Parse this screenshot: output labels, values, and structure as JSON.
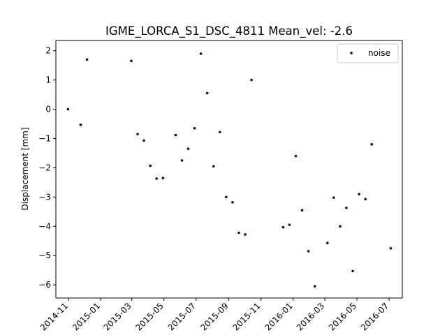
{
  "chart_data": {
    "type": "scatter",
    "title": "IGME_LORCA_S1_DSC_4811    Mean_vel: -2.6",
    "xlabel": "",
    "ylabel": "Displacement [mm]",
    "xlim": [
      "2014-10-08",
      "2016-07-26"
    ],
    "ylim": [
      -6.45,
      2.35
    ],
    "x_ticks": [
      "2014-11",
      "2015-01",
      "2015-03",
      "2015-05",
      "2015-07",
      "2015-09",
      "2015-11",
      "2016-01",
      "2016-03",
      "2016-05",
      "2016-07"
    ],
    "x_tick_dates": [
      "2014-11-01",
      "2015-01-01",
      "2015-03-01",
      "2015-05-01",
      "2015-07-01",
      "2015-09-01",
      "2015-11-01",
      "2016-01-01",
      "2016-03-01",
      "2016-05-01",
      "2016-07-01"
    ],
    "y_ticks": [
      2,
      1,
      0,
      -1,
      -2,
      -3,
      -4,
      -5,
      -6
    ],
    "y_tick_labels": [
      "2",
      "1",
      "0",
      "−1",
      "−2",
      "−3",
      "−4",
      "−5",
      "−6"
    ],
    "grid": false,
    "legend_position": "top-right",
    "marker_color": "#00007f",
    "series": [
      {
        "name": "noise",
        "points": [
          {
            "x": "2014-10-31",
            "y": 0.0
          },
          {
            "x": "2014-11-24",
            "y": -0.53
          },
          {
            "x": "2014-12-06",
            "y": 1.7
          },
          {
            "x": "2015-02-28",
            "y": 1.65
          },
          {
            "x": "2015-03-12",
            "y": -0.85
          },
          {
            "x": "2015-03-24",
            "y": -1.07
          },
          {
            "x": "2015-04-05",
            "y": -1.93
          },
          {
            "x": "2015-04-17",
            "y": -2.37
          },
          {
            "x": "2015-04-29",
            "y": -2.35
          },
          {
            "x": "2015-05-23",
            "y": -0.88
          },
          {
            "x": "2015-06-04",
            "y": -1.75
          },
          {
            "x": "2015-06-16",
            "y": -1.35
          },
          {
            "x": "2015-06-28",
            "y": -0.65
          },
          {
            "x": "2015-07-10",
            "y": 1.9
          },
          {
            "x": "2015-07-22",
            "y": 0.55
          },
          {
            "x": "2015-08-03",
            "y": -1.95
          },
          {
            "x": "2015-08-15",
            "y": -0.78
          },
          {
            "x": "2015-08-27",
            "y": -3.0
          },
          {
            "x": "2015-09-08",
            "y": -3.18
          },
          {
            "x": "2015-09-20",
            "y": -4.22
          },
          {
            "x": "2015-10-02",
            "y": -4.28
          },
          {
            "x": "2015-10-14",
            "y": 1.0
          },
          {
            "x": "2015-12-13",
            "y": -4.03
          },
          {
            "x": "2015-12-25",
            "y": -3.95
          },
          {
            "x": "2016-01-06",
            "y": -1.6
          },
          {
            "x": "2016-01-18",
            "y": -3.45
          },
          {
            "x": "2016-01-30",
            "y": -4.85
          },
          {
            "x": "2016-02-11",
            "y": -6.05
          },
          {
            "x": "2016-03-06",
            "y": -4.57
          },
          {
            "x": "2016-03-18",
            "y": -3.02
          },
          {
            "x": "2016-03-30",
            "y": -4.0
          },
          {
            "x": "2016-04-11",
            "y": -3.37
          },
          {
            "x": "2016-04-23",
            "y": -5.53
          },
          {
            "x": "2016-05-05",
            "y": -2.9
          },
          {
            "x": "2016-05-17",
            "y": -3.07
          },
          {
            "x": "2016-05-29",
            "y": -1.2
          },
          {
            "x": "2016-07-04",
            "y": -4.75
          }
        ]
      }
    ]
  }
}
